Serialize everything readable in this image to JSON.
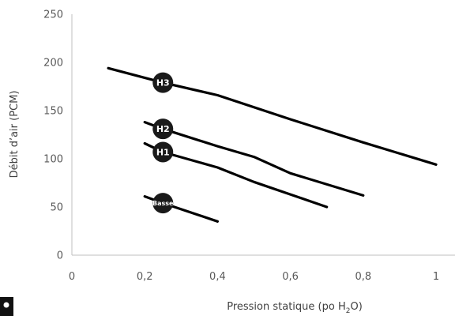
{
  "chart_data": {
    "type": "line",
    "xlabel_parts": [
      "Pression statique (po H",
      "2",
      "O)"
    ],
    "ylabel": "Débit d’air (PCM)",
    "xlim": [
      0,
      1
    ],
    "ylim": [
      0,
      250
    ],
    "x_tick_values": [
      0,
      0.2,
      0.4,
      0.6,
      0.8,
      1
    ],
    "x_tick_labels": [
      "0",
      "0,2",
      "0,4",
      "0,6",
      "0,8",
      "1"
    ],
    "y_tick_values": [
      0,
      50,
      100,
      150,
      200,
      250
    ],
    "y_tick_labels": [
      "0",
      "50",
      "100",
      "150",
      "200",
      "250"
    ],
    "grid": false,
    "series": [
      {
        "name": "H3",
        "color": "#000000",
        "label_x": 0.25,
        "x": [
          0.1,
          0.25,
          0.4,
          0.6,
          0.8,
          1.0
        ],
        "y": [
          194,
          179,
          166,
          141,
          117,
          94
        ]
      },
      {
        "name": "H2",
        "color": "#000000",
        "label_x": 0.25,
        "x": [
          0.2,
          0.25,
          0.4,
          0.5,
          0.6,
          0.8
        ],
        "y": [
          138,
          131,
          113,
          102,
          85,
          62
        ]
      },
      {
        "name": "H1",
        "color": "#000000",
        "label_x": 0.25,
        "x": [
          0.2,
          0.25,
          0.4,
          0.5,
          0.6,
          0.7
        ],
        "y": [
          116,
          107,
          91,
          76,
          63,
          50
        ]
      },
      {
        "name": "Basse",
        "color": "#000000",
        "label_x": 0.25,
        "x": [
          0.2,
          0.25,
          0.4
        ],
        "y": [
          61,
          54,
          35
        ]
      }
    ]
  }
}
